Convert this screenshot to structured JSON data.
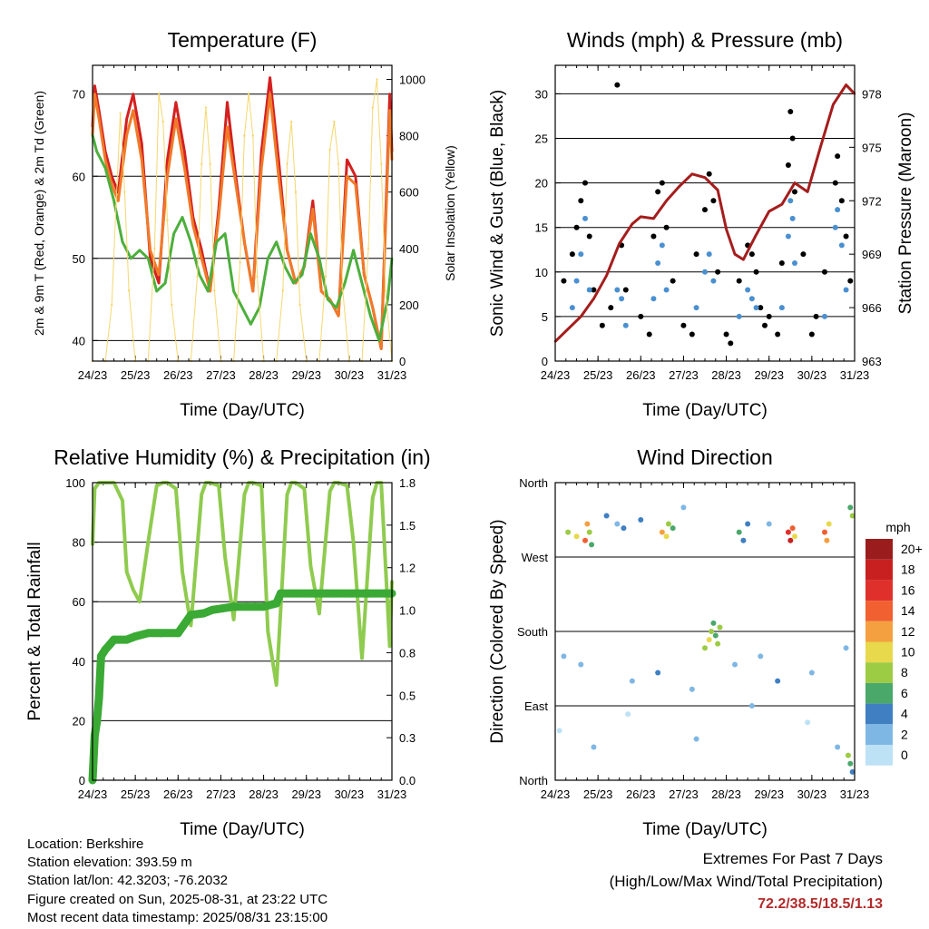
{
  "chart_data": [
    {
      "type": "line",
      "title": "Temperature (F)",
      "xlabel": "Time (Day/UTC)",
      "ylabel": "2m & 9m T (Red, Orange) & 2m Td (Green)",
      "ylabel_right": "Solar Insolation (Yellow)",
      "x_ticks": [
        "24/23",
        "25/23",
        "26/23",
        "27/23",
        "28/23",
        "29/23",
        "30/23",
        "31/23"
      ],
      "y_ticks": [
        "40",
        "50",
        "60",
        "70"
      ],
      "y_right_ticks": [
        "0",
        "200",
        "400",
        "600",
        "800",
        "1000"
      ],
      "ylim": [
        37.5,
        73.5
      ],
      "ylim_right": [
        0,
        1050
      ],
      "series": [
        {
          "name": "2m T",
          "color": "#d42020",
          "axis": "left",
          "x": [
            0,
            0.05,
            0.15,
            0.3,
            0.45,
            0.6,
            0.8,
            0.95,
            1.15,
            1.35,
            1.55,
            1.75,
            1.95,
            2.15,
            2.35,
            2.55,
            2.75,
            2.95,
            3.15,
            3.35,
            3.55,
            3.75,
            3.95,
            4.15,
            4.35,
            4.55,
            4.75,
            4.95,
            5.15,
            5.35,
            5.55,
            5.75,
            5.95,
            6.15,
            6.35,
            6.55,
            6.75,
            6.95,
            7.0
          ],
          "y": [
            66,
            71,
            68,
            63,
            60,
            58,
            67,
            70,
            64,
            50,
            47,
            62,
            69,
            63,
            55,
            51,
            46,
            56,
            69,
            60,
            52,
            46,
            63,
            72,
            62,
            51,
            47,
            49,
            57,
            46,
            45,
            43,
            62,
            60,
            48,
            44,
            39,
            70,
            63
          ]
        },
        {
          "name": "9m T",
          "color": "#f07a28",
          "axis": "left",
          "x": [
            0,
            0.05,
            0.15,
            0.3,
            0.45,
            0.6,
            0.8,
            0.95,
            1.15,
            1.35,
            1.55,
            1.75,
            1.95,
            2.15,
            2.35,
            2.55,
            2.75,
            2.95,
            3.15,
            3.35,
            3.55,
            3.75,
            3.95,
            4.15,
            4.35,
            4.55,
            4.75,
            4.95,
            5.15,
            5.35,
            5.55,
            5.75,
            5.95,
            6.15,
            6.35,
            6.55,
            6.75,
            6.95,
            7.0
          ],
          "y": [
            65,
            70,
            67,
            62,
            59,
            57,
            65,
            68,
            62,
            51,
            48,
            60,
            67,
            61,
            54,
            50,
            46,
            55,
            66,
            59,
            52,
            46,
            61,
            70,
            60,
            51,
            47,
            49,
            56,
            46,
            45,
            43,
            60,
            59,
            48,
            44,
            39,
            68,
            62
          ]
        },
        {
          "name": "2m Td",
          "color": "#4caf3c",
          "axis": "left",
          "x": [
            0,
            0.1,
            0.3,
            0.5,
            0.7,
            0.9,
            1.1,
            1.3,
            1.5,
            1.7,
            1.9,
            2.1,
            2.3,
            2.5,
            2.7,
            2.9,
            3.1,
            3.3,
            3.5,
            3.7,
            3.9,
            4.1,
            4.3,
            4.5,
            4.7,
            4.9,
            5.1,
            5.3,
            5.5,
            5.7,
            5.9,
            6.1,
            6.3,
            6.5,
            6.7,
            6.9,
            7.0
          ],
          "y": [
            65,
            63,
            61,
            57,
            52,
            50,
            51,
            50,
            46,
            47,
            53,
            55,
            52,
            48,
            46,
            52,
            53,
            46,
            44,
            42,
            44,
            50,
            52,
            49,
            47,
            48,
            53,
            50,
            45,
            44,
            47,
            51,
            47,
            43,
            40,
            45,
            50
          ]
        },
        {
          "name": "Solar Insolation",
          "color": "#f5d76e",
          "axis": "right",
          "x": [
            0,
            0.3,
            0.45,
            0.55,
            0.65,
            0.75,
            0.85,
            1.0,
            1.3,
            1.45,
            1.55,
            1.65,
            1.75,
            1.85,
            2.0,
            2.3,
            2.45,
            2.55,
            2.65,
            2.75,
            2.85,
            3.0,
            3.3,
            3.45,
            3.55,
            3.65,
            3.75,
            3.85,
            4.0,
            4.3,
            4.45,
            4.55,
            4.65,
            4.75,
            4.85,
            5.0,
            5.3,
            5.45,
            5.55,
            5.65,
            5.75,
            5.85,
            6.0,
            6.3,
            6.45,
            6.55,
            6.65,
            6.75,
            6.85,
            7.0
          ],
          "y": [
            0,
            0,
            200,
            550,
            880,
            600,
            250,
            0,
            0,
            400,
            950,
            850,
            500,
            200,
            0,
            0,
            300,
            700,
            900,
            700,
            250,
            0,
            0,
            350,
            800,
            950,
            800,
            300,
            0,
            0,
            250,
            700,
            850,
            600,
            200,
            0,
            0,
            300,
            750,
            850,
            700,
            250,
            0,
            0,
            400,
            900,
            1000,
            700,
            250,
            0
          ]
        }
      ]
    },
    {
      "type": "scatter",
      "title": "Winds (mph) & Pressure (mb)",
      "xlabel": "Time (Day/UTC)",
      "ylabel": "Sonic Wind & Gust (Blue, Black)",
      "ylabel_right": "Station Pressure (Maroon)",
      "x_ticks": [
        "24/23",
        "25/23",
        "26/23",
        "27/23",
        "28/23",
        "29/23",
        "30/23",
        "31/23"
      ],
      "y_ticks": [
        "0",
        "5",
        "10",
        "15",
        "20",
        "25",
        "30"
      ],
      "y_right_ticks": [
        "963",
        "966",
        "969",
        "972",
        "975",
        "978"
      ],
      "ylim": [
        0,
        33.2
      ],
      "ylim_right": [
        963,
        979.6
      ],
      "series": [
        {
          "name": "Gust",
          "color": "#000000",
          "x": [
            0.4,
            0.5,
            0.6,
            0.7,
            0.8,
            1.45,
            1.55,
            1.65,
            2.0,
            2.3,
            2.4,
            2.5,
            2.6,
            2.75,
            3.0,
            3.3,
            3.5,
            3.6,
            3.7,
            3.8,
            4.0,
            4.3,
            4.5,
            4.6,
            4.7,
            4.8,
            5.0,
            5.3,
            5.45,
            5.5,
            5.55,
            5.6,
            5.8,
            6.0,
            6.3,
            6.55,
            6.6,
            6.7,
            6.8,
            6.9,
            1.1,
            1.3,
            2.2,
            3.2,
            4.1,
            4.9,
            5.2,
            6.1,
            0.2,
            0.9
          ],
          "y": [
            12,
            15,
            18,
            20,
            14,
            31,
            13,
            8,
            5,
            14,
            19,
            20,
            15,
            9,
            4,
            12,
            17,
            21,
            18,
            10,
            3,
            9,
            13,
            12,
            10,
            6,
            5,
            11,
            22,
            28,
            25,
            19,
            12,
            3,
            10,
            20,
            23,
            18,
            14,
            9,
            4,
            6,
            3,
            3,
            2,
            4,
            3,
            5,
            9,
            8
          ]
        },
        {
          "name": "Wind",
          "color": "#4a90d0",
          "x": [
            0.4,
            0.5,
            0.6,
            0.7,
            0.8,
            1.45,
            1.55,
            1.65,
            2.3,
            2.4,
            2.5,
            2.6,
            3.3,
            3.5,
            3.6,
            3.7,
            4.3,
            4.5,
            4.6,
            4.7,
            5.3,
            5.45,
            5.5,
            5.55,
            5.6,
            6.3,
            6.55,
            6.6,
            6.7,
            6.8
          ],
          "y": [
            6,
            9,
            12,
            16,
            8,
            8,
            7,
            4,
            7,
            11,
            13,
            8,
            6,
            10,
            12,
            9,
            5,
            8,
            7,
            6,
            6,
            14,
            18,
            16,
            11,
            5,
            15,
            17,
            13,
            8
          ]
        },
        {
          "name": "Pressure",
          "color": "#a51d1d",
          "axis": "right",
          "x": [
            0,
            0.3,
            0.6,
            0.9,
            1.2,
            1.5,
            1.8,
            2.0,
            2.3,
            2.6,
            2.9,
            3.2,
            3.5,
            3.8,
            4.0,
            4.2,
            4.4,
            4.7,
            5.0,
            5.3,
            5.6,
            5.9,
            6.2,
            6.5,
            6.8,
            7.0
          ],
          "y": [
            964.1,
            964.8,
            965.5,
            966.5,
            967.8,
            969.6,
            970.7,
            971.1,
            971.0,
            972.0,
            972.8,
            973.5,
            973.3,
            972.6,
            970.4,
            969.0,
            968.7,
            970.1,
            971.4,
            971.8,
            973.0,
            972.5,
            975.0,
            977.4,
            978.5,
            978.0
          ]
        }
      ]
    },
    {
      "type": "line",
      "title": "Relative Humidity (%) & Precipitation (in)",
      "xlabel": "Time (Day/UTC)",
      "ylabel": "Percent & Total Rainfall",
      "x_ticks": [
        "24/23",
        "25/23",
        "26/23",
        "27/23",
        "28/23",
        "29/23",
        "30/23",
        "31/23"
      ],
      "y_ticks": [
        "0",
        "20",
        "40",
        "60",
        "80",
        "100"
      ],
      "y_right_ticks": [
        "0.0",
        "0.3",
        "0.5",
        "0.8",
        "1.0",
        "1.2",
        "1.5",
        "1.8"
      ],
      "ylim": [
        0,
        100
      ],
      "ylim_right": [
        0,
        1.8
      ],
      "series": [
        {
          "name": "RH",
          "color": "#8fcb4f",
          "x": [
            0,
            0.05,
            0.15,
            0.5,
            0.7,
            0.8,
            0.95,
            1.1,
            1.3,
            1.5,
            1.65,
            1.75,
            1.95,
            2.1,
            2.3,
            2.55,
            2.65,
            2.75,
            2.95,
            3.1,
            3.3,
            3.55,
            3.65,
            3.75,
            3.95,
            4.1,
            4.3,
            4.55,
            4.65,
            4.75,
            4.95,
            5.1,
            5.3,
            5.55,
            5.65,
            5.75,
            5.95,
            6.1,
            6.3,
            6.55,
            6.65,
            6.75,
            6.95,
            7.0
          ],
          "y": [
            79,
            98,
            100,
            100,
            94,
            70,
            64,
            60,
            80,
            99,
            100,
            100,
            98,
            70,
            52,
            96,
            100,
            100,
            99,
            75,
            54,
            96,
            100,
            100,
            99,
            50,
            32,
            96,
            100,
            100,
            98,
            72,
            56,
            97,
            100,
            100,
            99,
            80,
            41,
            95,
            100,
            100,
            45,
            67
          ]
        },
        {
          "name": "Total Precipitation",
          "color": "#3aaa35",
          "axis": "right",
          "x": [
            0,
            0.05,
            0.1,
            0.15,
            0.2,
            0.3,
            0.4,
            0.5,
            0.8,
            1.0,
            1.3,
            1.6,
            2.0,
            2.3,
            2.6,
            2.8,
            3.3,
            3.6,
            3.8,
            4.0,
            4.3,
            4.4,
            5.0,
            5.5,
            6.0,
            6.5,
            7.0
          ],
          "y": [
            0.0,
            0.27,
            0.35,
            0.5,
            0.75,
            0.79,
            0.82,
            0.85,
            0.85,
            0.87,
            0.89,
            0.89,
            0.89,
            1.0,
            1.01,
            1.03,
            1.05,
            1.05,
            1.05,
            1.05,
            1.07,
            1.13,
            1.13,
            1.13,
            1.13,
            1.13,
            1.13
          ]
        }
      ]
    },
    {
      "type": "scatter",
      "title": "Wind Direction",
      "xlabel": "Time (Day/UTC)",
      "ylabel": "Direction (Colored By Speed)",
      "x_ticks": [
        "24/23",
        "25/23",
        "26/23",
        "27/23",
        "28/23",
        "29/23",
        "30/23",
        "31/23"
      ],
      "y_ticks": [
        "North",
        "West",
        "South",
        "East",
        "North"
      ],
      "ylim": [
        0,
        360
      ],
      "colorbar": {
        "unit": "mph",
        "labels": [
          "20+",
          "18",
          "16",
          "14",
          "12",
          "10",
          "8",
          "6",
          "4",
          "2",
          "0"
        ],
        "colors": [
          "#9b1c1c",
          "#c82020",
          "#e0302c",
          "#f06030",
          "#f5a040",
          "#e8d84c",
          "#9ccb44",
          "#4aa86a",
          "#3f7fc2",
          "#7fb7e4",
          "#bde2f5"
        ]
      },
      "series": [
        {
          "name": "Direction",
          "x": [
            0.3,
            0.5,
            0.7,
            0.75,
            0.8,
            0.85,
            1.2,
            1.45,
            1.6,
            2.0,
            2.5,
            2.6,
            2.65,
            2.75,
            3.0,
            3.5,
            3.6,
            3.65,
            3.7,
            3.75,
            3.8,
            3.85,
            4.3,
            4.4,
            4.5,
            5.0,
            5.45,
            5.5,
            5.55,
            5.6,
            6.3,
            6.35,
            6.4,
            6.9,
            6.95,
            0.2,
            0.6,
            1.8,
            2.4,
            3.2,
            4.2,
            4.8,
            5.2,
            6.0,
            6.8,
            0.1,
            0.9,
            1.7,
            3.3,
            4.6,
            5.9,
            6.6,
            6.85,
            6.9,
            6.95
          ],
          "y": [
            300,
            295,
            290,
            310,
            300,
            285,
            320,
            310,
            305,
            315,
            300,
            295,
            310,
            305,
            330,
            160,
            170,
            180,
            190,
            175,
            165,
            185,
            300,
            290,
            310,
            310,
            300,
            290,
            305,
            295,
            300,
            290,
            310,
            330,
            320,
            150,
            140,
            120,
            130,
            110,
            140,
            150,
            120,
            130,
            160,
            60,
            40,
            80,
            50,
            90,
            70,
            40,
            30,
            20,
            10
          ],
          "speed": [
            8,
            10,
            14,
            12,
            9,
            6,
            4,
            3,
            5,
            4,
            12,
            10,
            8,
            6,
            3,
            8,
            10,
            9,
            7,
            6,
            8,
            9,
            6,
            5,
            4,
            3,
            16,
            18,
            14,
            10,
            14,
            12,
            10,
            6,
            8,
            2,
            3,
            2,
            4,
            3,
            2,
            3,
            4,
            2,
            3,
            1,
            2,
            1,
            3,
            2,
            1,
            3,
            8,
            6,
            4
          ]
        }
      ]
    }
  ],
  "footer": {
    "location": "Location: Berkshire",
    "elevation": "Station elevation: 393.59 m",
    "latlon": "Station lat/lon: 42.3203; -76.2032",
    "created": "Figure created on Sun, 2025-08-31, at 23:22 UTC",
    "timestamp": "Most recent data timestamp: 2025/08/31 23:15:00"
  },
  "extremes": {
    "title": "Extremes For Past 7 Days",
    "subtitle": "(High/Low/Max Wind/Total Precipitation)",
    "values": "72.2/38.5/18.5/1.13"
  }
}
